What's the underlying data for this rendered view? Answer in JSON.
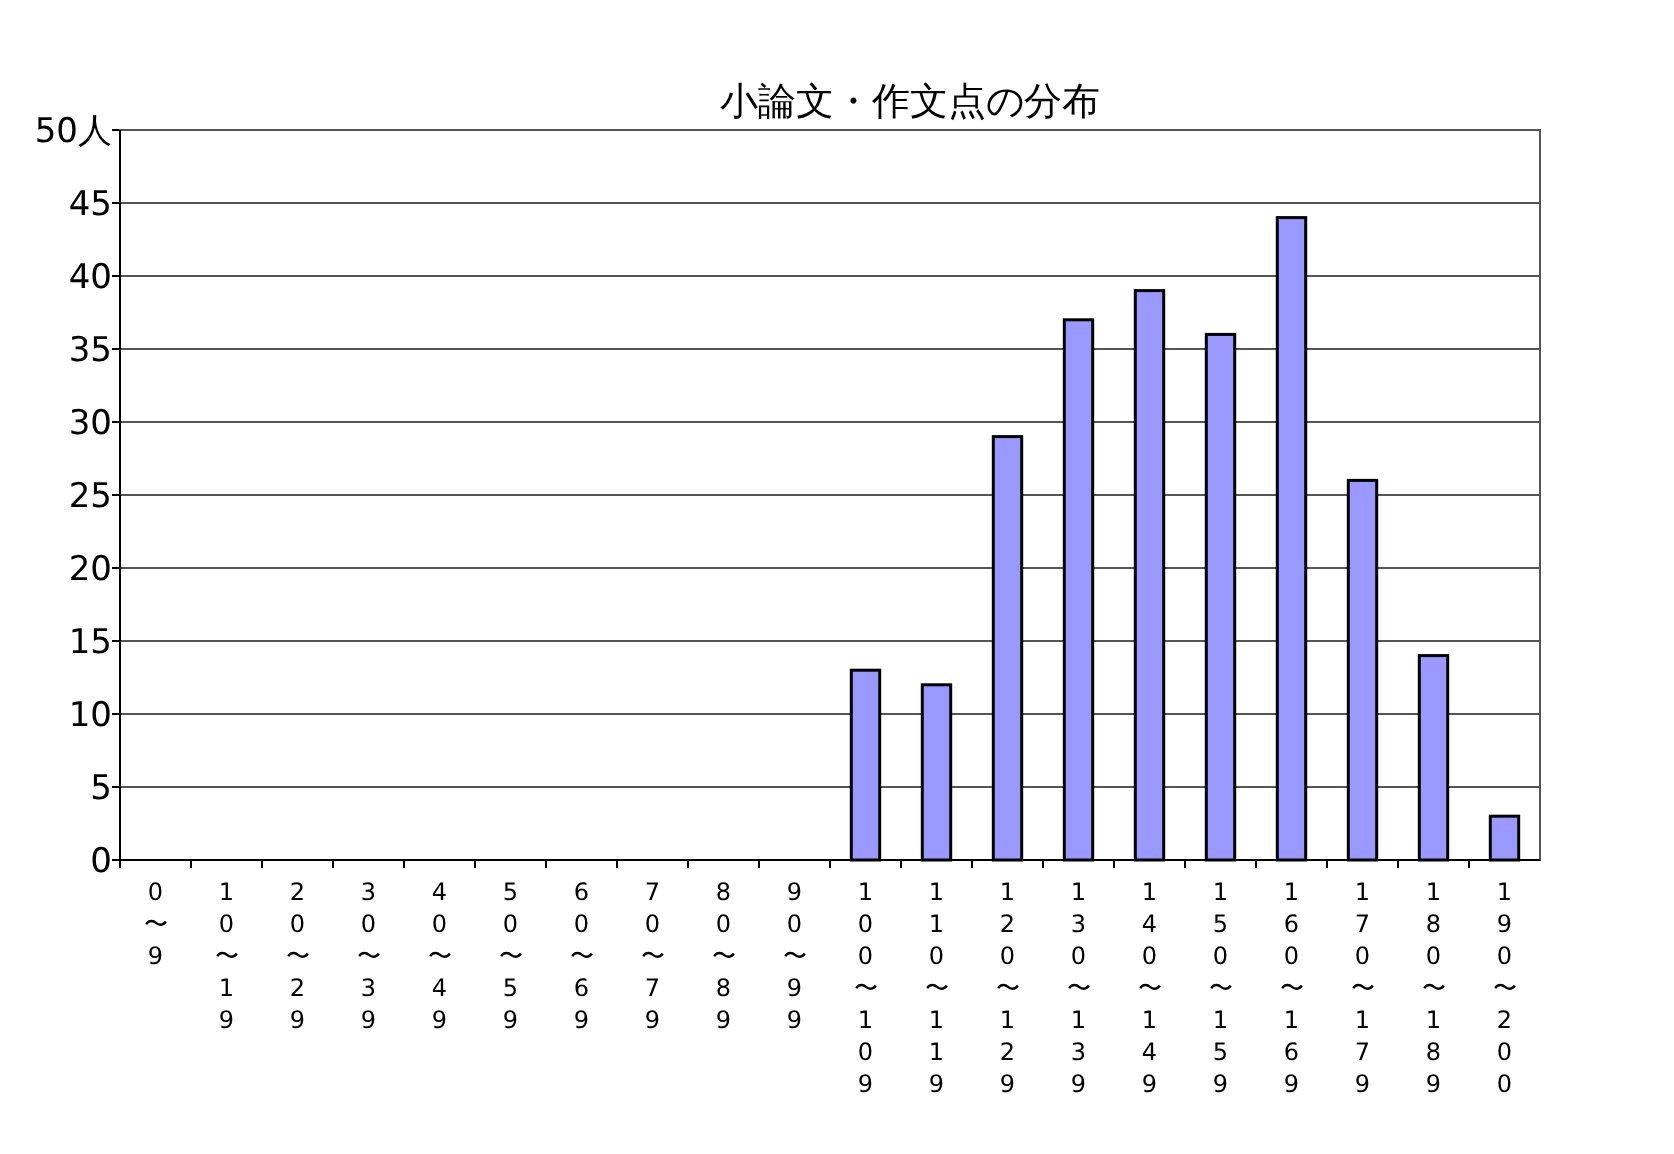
{
  "chart_data": {
    "type": "bar",
    "title": "小論文・作文点の分布",
    "categories": [
      "0〜9",
      "10〜19",
      "20〜29",
      "30〜39",
      "40〜49",
      "50〜59",
      "60〜69",
      "70〜79",
      "80〜89",
      "90〜99",
      "100〜109",
      "110〜119",
      "120〜129",
      "130〜139",
      "140〜149",
      "150〜159",
      "160〜169",
      "170〜179",
      "180〜189",
      "190〜200"
    ],
    "values": [
      0,
      0,
      0,
      0,
      0,
      0,
      0,
      0,
      0,
      0,
      13,
      12,
      29,
      37,
      39,
      36,
      44,
      26,
      14,
      3
    ],
    "color": "#9999ff",
    "ylim": [
      0,
      50
    ],
    "yticks": [
      0,
      5,
      10,
      15,
      20,
      25,
      30,
      35,
      40,
      45,
      {
        "value": 50,
        "label": "50人"
      }
    ],
    "grid": "y"
  }
}
